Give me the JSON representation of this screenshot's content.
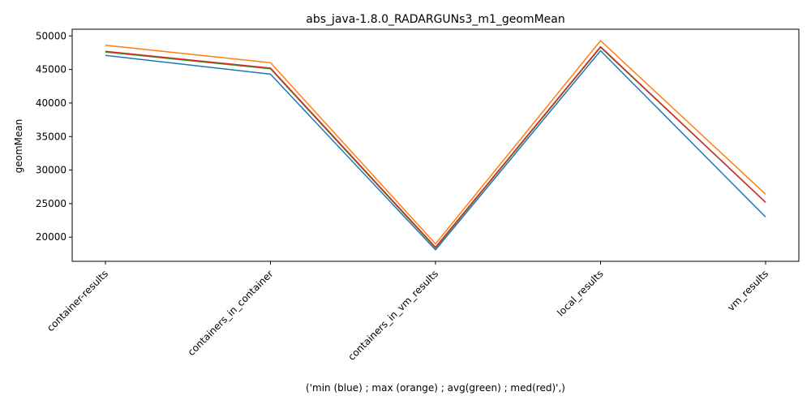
{
  "chart_data": {
    "type": "line",
    "title": "abs_java-1.8.0_RADARGUNs3_m1_geomMean",
    "xlabel": "('min (blue) ; max (orange) ; avg(green) ; med(red)',)",
    "ylabel": "geomMean",
    "categories": [
      "container-results",
      "containers_in_container",
      "containers_in_vm_results",
      "local_results",
      "vm_results"
    ],
    "ylim": [
      16400,
      51000
    ],
    "yticks": [
      20000,
      25000,
      30000,
      35000,
      40000,
      45000,
      50000
    ],
    "grid": false,
    "series": [
      {
        "color": "#1f77b4",
        "values": [
          47100,
          44300,
          18100,
          47800,
          23000
        ]
      },
      {
        "color": "#ff7f0e",
        "values": [
          48600,
          46000,
          19000,
          49300,
          26400
        ]
      },
      {
        "color": "#2ca02c",
        "values": [
          47600,
          45100,
          18400,
          48300,
          25200
        ]
      },
      {
        "color": "#d62728",
        "values": [
          47700,
          45200,
          18500,
          48400,
          25200
        ]
      }
    ]
  }
}
